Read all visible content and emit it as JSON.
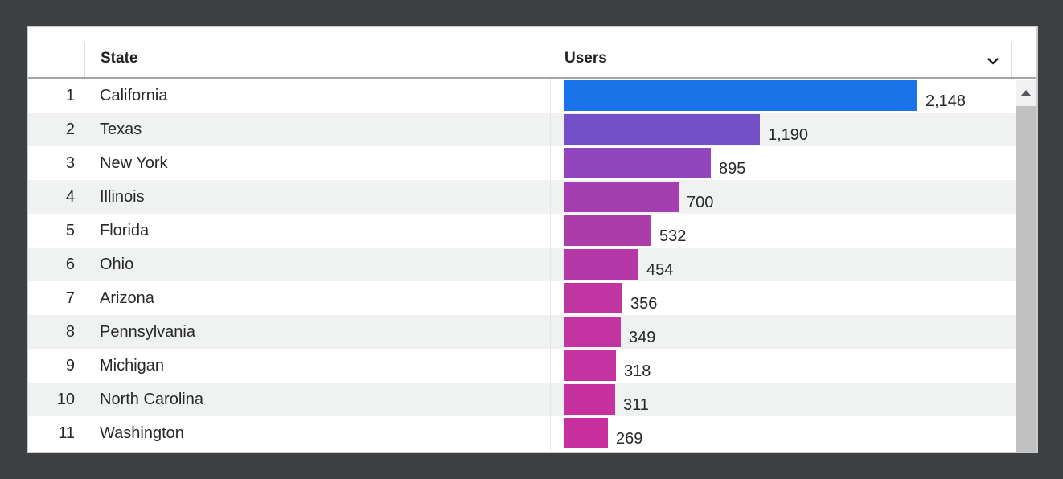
{
  "colors": {
    "frame_background": "#3c4043",
    "card_background": "#ffffff",
    "row_stripe": "#f0f1f1",
    "header_text": "#202124",
    "bar_label_text": "#26282b",
    "scroll_thumb": "#c1c1c1",
    "scroll_track": "#f1f1f1"
  },
  "table": {
    "header": {
      "rank": "",
      "state": "State",
      "users": "Users"
    },
    "sort_icon": "chevron-down-icon",
    "rows": [
      {
        "rank": "1",
        "state": "California",
        "users": "2,148",
        "value": 2148,
        "color": "#1a73e8"
      },
      {
        "rank": "2",
        "state": "Texas",
        "users": "1,190",
        "value": 1190,
        "color": "#7150c8"
      },
      {
        "rank": "3",
        "state": "New York",
        "users": "895",
        "value": 895,
        "color": "#9345bd"
      },
      {
        "rank": "4",
        "state": "Illinois",
        "users": "700",
        "value": 700,
        "color": "#a53eb1"
      },
      {
        "rank": "5",
        "state": "Florida",
        "users": "532",
        "value": 532,
        "color": "#ab3caa"
      },
      {
        "rank": "6",
        "state": "Ohio",
        "users": "454",
        "value": 454,
        "color": "#b438a7"
      },
      {
        "rank": "7",
        "state": "Arizona",
        "users": "356",
        "value": 356,
        "color": "#c135a3"
      },
      {
        "rank": "8",
        "state": "Pennsylvania",
        "users": "349",
        "value": 349,
        "color": "#c334a2"
      },
      {
        "rank": "9",
        "state": "Michigan",
        "users": "318",
        "value": 318,
        "color": "#c532a1"
      },
      {
        "rank": "10",
        "state": "North Carolina",
        "users": "311",
        "value": 311,
        "color": "#c6319f"
      },
      {
        "rank": "11",
        "state": "Washington",
        "users": "269",
        "value": 269,
        "color": "#c72f9e"
      }
    ]
  },
  "chart_data": {
    "type": "bar",
    "orientation": "horizontal",
    "title": "",
    "xlabel": "Users",
    "ylabel": "State",
    "categories": [
      "California",
      "Texas",
      "New York",
      "Illinois",
      "Florida",
      "Ohio",
      "Arizona",
      "Pennsylvania",
      "Michigan",
      "North Carolina",
      "Washington"
    ],
    "values": [
      2148,
      1190,
      895,
      700,
      532,
      454,
      356,
      349,
      318,
      311,
      269
    ],
    "value_labels": [
      "2,148",
      "1,190",
      "895",
      "700",
      "532",
      "454",
      "356",
      "349",
      "318",
      "311",
      "269"
    ],
    "bar_colors": [
      "#1a73e8",
      "#7150c8",
      "#9345bd",
      "#a53eb1",
      "#ab3caa",
      "#b438a7",
      "#c135a3",
      "#c334a2",
      "#c532a1",
      "#c6319f",
      "#c72f9e"
    ],
    "xlim": [
      0,
      2148
    ],
    "grid": false,
    "legend": false
  }
}
